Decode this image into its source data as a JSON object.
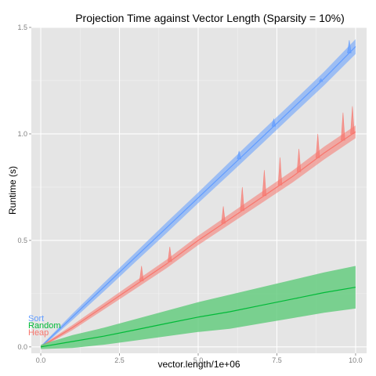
{
  "chart_data": {
    "type": "line",
    "title": "Projection Time against Vector Length (Sparsity = 10%)",
    "xlabel": "vector.length/1e+06",
    "ylabel": "Runtime (s)",
    "xlim": [
      -0.3,
      10.35
    ],
    "ylim": [
      -0.03,
      1.5
    ],
    "x_ticks": [
      0.0,
      2.5,
      5.0,
      7.5,
      10.0
    ],
    "x_tick_labels": [
      "0.0",
      "2.5",
      "5.0",
      "7.5",
      "10.0"
    ],
    "y_ticks": [
      0.0,
      0.5,
      1.0,
      1.5
    ],
    "y_tick_labels": [
      "0.0",
      "0.5",
      "1.0",
      "1.5"
    ],
    "grid": true,
    "legend": "inline-left",
    "series": [
      {
        "name": "Sort",
        "color": "#619CFF",
        "x": [
          0,
          1,
          2,
          3,
          4,
          5,
          6,
          7,
          8,
          9,
          10
        ],
        "values": [
          0.0,
          0.14,
          0.28,
          0.42,
          0.56,
          0.7,
          0.84,
          0.98,
          1.12,
          1.26,
          1.41
        ],
        "band_width": [
          0.005,
          0.015,
          0.02,
          0.022,
          0.025,
          0.025,
          0.028,
          0.03,
          0.03,
          0.032,
          0.035
        ],
        "spikes": [
          {
            "x": 6.3,
            "value": 0.92
          },
          {
            "x": 7.4,
            "value": 1.07
          },
          {
            "x": 8.9,
            "value": 1.26
          },
          {
            "x": 9.8,
            "value": 1.44
          }
        ]
      },
      {
        "name": "Heap",
        "color": "#F8766D",
        "x": [
          0,
          1,
          2,
          3,
          4,
          5,
          6,
          7,
          8,
          9,
          10
        ],
        "values": [
          0.0,
          0.09,
          0.19,
          0.29,
          0.39,
          0.5,
          0.6,
          0.7,
          0.8,
          0.91,
          1.01
        ],
        "band_width": [
          0.005,
          0.012,
          0.015,
          0.018,
          0.02,
          0.022,
          0.024,
          0.026,
          0.028,
          0.03,
          0.03
        ],
        "spikes": [
          {
            "x": 3.2,
            "value": 0.38
          },
          {
            "x": 4.1,
            "value": 0.47
          },
          {
            "x": 5.8,
            "value": 0.66
          },
          {
            "x": 6.4,
            "value": 0.75
          },
          {
            "x": 7.1,
            "value": 0.83
          },
          {
            "x": 7.6,
            "value": 0.89
          },
          {
            "x": 8.2,
            "value": 0.93
          },
          {
            "x": 8.8,
            "value": 1.0
          },
          {
            "x": 9.6,
            "value": 1.1
          },
          {
            "x": 9.9,
            "value": 1.13
          }
        ]
      },
      {
        "name": "Random",
        "color": "#00BA38",
        "fill": "#66CC80",
        "x": [
          0,
          1,
          2,
          3,
          4,
          5,
          6,
          7,
          8,
          9,
          10
        ],
        "values": [
          0.0,
          0.025,
          0.05,
          0.08,
          0.11,
          0.14,
          0.165,
          0.195,
          0.225,
          0.255,
          0.28
        ],
        "band_width": [
          0.01,
          0.03,
          0.04,
          0.05,
          0.06,
          0.07,
          0.08,
          0.085,
          0.09,
          0.095,
          0.1
        ],
        "spikes": []
      }
    ]
  },
  "labels": {
    "sort": "Sort",
    "random": "Random",
    "heap": "Heap"
  }
}
